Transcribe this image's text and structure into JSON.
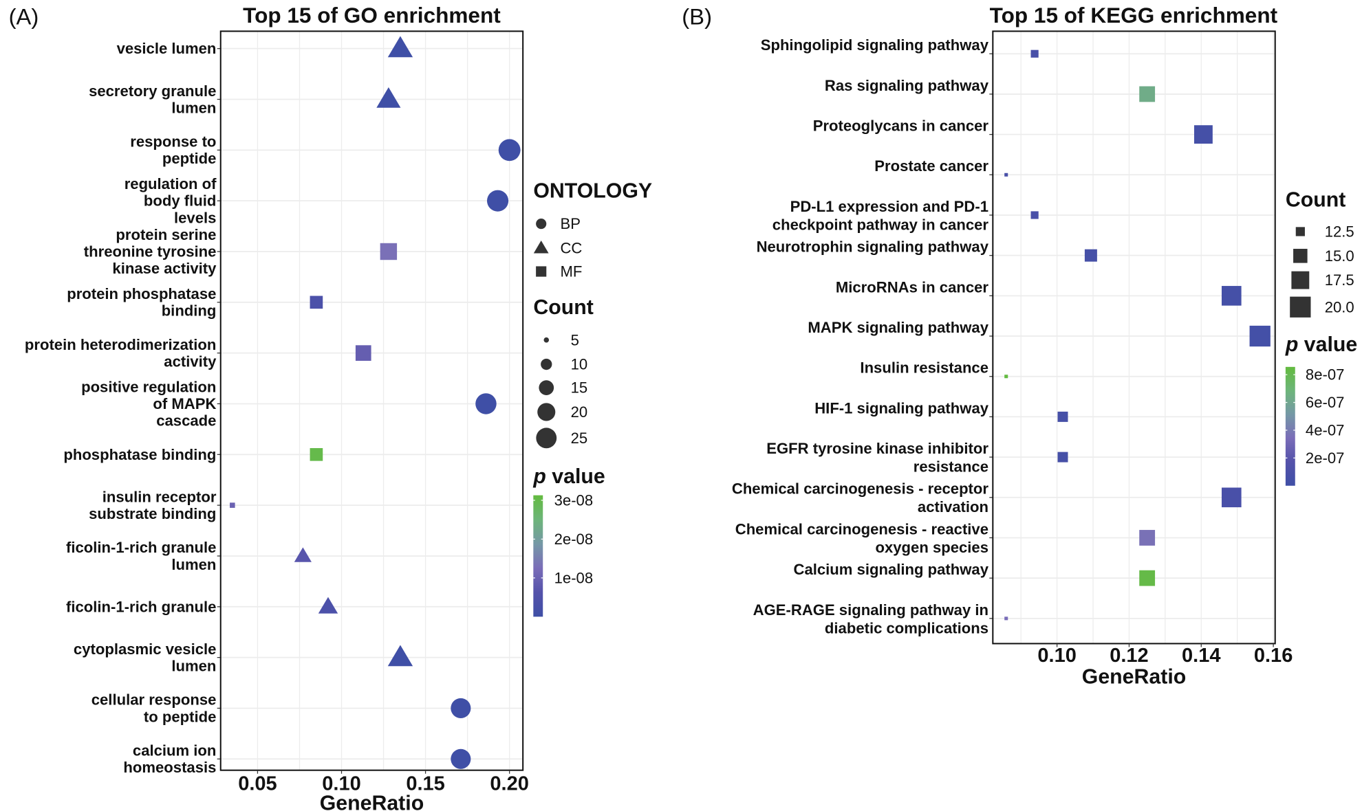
{
  "chart_data": [
    {
      "type": "scatter",
      "panel_label": "(A)",
      "title": "Top 15 of GO enrichment",
      "xlabel": "GeneRatio",
      "xlim": [
        0.028,
        0.208
      ],
      "xticks": [
        0.05,
        0.1,
        0.15,
        0.2
      ],
      "xtick_labels": [
        "0.05",
        "0.10",
        "0.15",
        "0.20"
      ],
      "grid": true,
      "points": [
        {
          "term": "vesicle lumen",
          "gene_ratio": 0.135,
          "count": 19,
          "ontology": "CC",
          "p_value": 1e-10
        },
        {
          "term": "secretory granule\nlumen",
          "gene_ratio": 0.128,
          "count": 18,
          "ontology": "CC",
          "p_value": 1e-10
        },
        {
          "term": "response to\npeptide",
          "gene_ratio": 0.2,
          "count": 28,
          "ontology": "BP",
          "p_value": 1e-10
        },
        {
          "term": "regulation of\nbody fluid\nlevels",
          "gene_ratio": 0.193,
          "count": 27,
          "ontology": "BP",
          "p_value": 1e-10
        },
        {
          "term": "protein serine\nthreonine tyrosine\nkinase activity",
          "gene_ratio": 0.128,
          "count": 18,
          "ontology": "MF",
          "p_value": 1.3e-08
        },
        {
          "term": "protein phosphatase\nbinding",
          "gene_ratio": 0.085,
          "count": 12,
          "ontology": "MF",
          "p_value": 4e-09
        },
        {
          "term": "protein heterodimerization\nactivity",
          "gene_ratio": 0.113,
          "count": 16,
          "ontology": "MF",
          "p_value": 9e-09
        },
        {
          "term": "positive regulation\nof MAPK\ncascade",
          "gene_ratio": 0.186,
          "count": 26,
          "ontology": "BP",
          "p_value": 1e-10
        },
        {
          "term": "phosphatase binding",
          "gene_ratio": 0.085,
          "count": 12,
          "ontology": "MF",
          "p_value": 3e-08
        },
        {
          "term": "insulin receptor\nsubstrate binding",
          "gene_ratio": 0.035,
          "count": 5,
          "ontology": "MF",
          "p_value": 1e-08
        },
        {
          "term": "ficolin-1-rich granule\nlumen",
          "gene_ratio": 0.077,
          "count": 11,
          "ontology": "CC",
          "p_value": 7e-09
        },
        {
          "term": "ficolin-1-rich granule",
          "gene_ratio": 0.092,
          "count": 13,
          "ontology": "CC",
          "p_value": 4e-09
        },
        {
          "term": "cytoplasmic vesicle\nlumen",
          "gene_ratio": 0.135,
          "count": 19,
          "ontology": "CC",
          "p_value": 1e-10
        },
        {
          "term": "cellular response\nto peptide",
          "gene_ratio": 0.171,
          "count": 24,
          "ontology": "BP",
          "p_value": 1e-10
        },
        {
          "term": "calcium ion\nhomeostasis",
          "gene_ratio": 0.171,
          "count": 24,
          "ontology": "BP",
          "p_value": 1e-10
        }
      ],
      "legend_ontology": {
        "title": "ONTOLOGY",
        "items": [
          {
            "label": "BP",
            "shape": "circle"
          },
          {
            "label": "CC",
            "shape": "triangle"
          },
          {
            "label": "MF",
            "shape": "square"
          }
        ]
      },
      "legend_count": {
        "title": "Count",
        "values": [
          5,
          10,
          15,
          20,
          25
        ],
        "labels": [
          "5",
          "10",
          "15",
          "20",
          "25"
        ],
        "shape": "circle"
      },
      "legend_p": {
        "title": "p value",
        "ticks": [
          3e-08,
          2e-08,
          1e-08
        ],
        "tick_labels": [
          "3e-08",
          "2e-08",
          "1e-08"
        ],
        "range": [
          0,
          3.13e-08
        ]
      },
      "legend_placement": "right"
    },
    {
      "type": "scatter",
      "panel_label": "(B)",
      "title": "Top 15 of KEGG enrichment",
      "xlabel": "GeneRatio",
      "xlim": [
        0.0822,
        0.1605
      ],
      "xticks": [
        0.1,
        0.12,
        0.14,
        0.16
      ],
      "xtick_labels": [
        "0.10",
        "0.12",
        "0.14",
        "0.16"
      ],
      "grid": true,
      "points": [
        {
          "term": "Sphingolipid signaling pathway",
          "gene_ratio": 0.0938,
          "count": 12,
          "p_value": 8e-08
        },
        {
          "term": "Ras signaling pathway",
          "gene_ratio": 0.125,
          "count": 16,
          "p_value": 6.3e-07
        },
        {
          "term": "Proteoglycans in cancer",
          "gene_ratio": 0.1406,
          "count": 18,
          "p_value": 5e-08
        },
        {
          "term": "Prostate cancer",
          "gene_ratio": 0.0859,
          "count": 11,
          "p_value": 8e-08
        },
        {
          "term": "PD-L1 expression and PD-1\ncheckpoint pathway in cancer",
          "gene_ratio": 0.0938,
          "count": 12,
          "p_value": 8e-08
        },
        {
          "term": "Neurotrophin signaling pathway",
          "gene_ratio": 0.1094,
          "count": 14,
          "p_value": 6e-08
        },
        {
          "term": "MicroRNAs in cancer",
          "gene_ratio": 0.1484,
          "count": 19,
          "p_value": 5e-08
        },
        {
          "term": "MAPK signaling pathway",
          "gene_ratio": 0.1563,
          "count": 20,
          "p_value": 4e-08
        },
        {
          "term": "Insulin resistance",
          "gene_ratio": 0.0859,
          "count": 11,
          "p_value": 8.5e-07
        },
        {
          "term": "HIF-1 signaling pathway",
          "gene_ratio": 0.1016,
          "count": 13,
          "p_value": 6e-08
        },
        {
          "term": "EGFR tyrosine kinase inhibitor\nresistance",
          "gene_ratio": 0.1016,
          "count": 13,
          "p_value": 6e-08
        },
        {
          "term": "Chemical carcinogenesis - receptor\nactivation",
          "gene_ratio": 0.1484,
          "count": 19,
          "p_value": 8e-08
        },
        {
          "term": "Chemical carcinogenesis - reactive\noxygen species",
          "gene_ratio": 0.125,
          "count": 16,
          "p_value": 3.6e-07
        },
        {
          "term": "Calcium signaling pathway",
          "gene_ratio": 0.125,
          "count": 16,
          "p_value": 8.3e-07
        },
        {
          "term": "AGE-RAGE signaling pathway in\ndiabetic complications",
          "gene_ratio": 0.0859,
          "count": 11,
          "p_value": 3.4e-07
        }
      ],
      "legend_count": {
        "title": "Count",
        "values": [
          12.5,
          15.0,
          17.5,
          20.0
        ],
        "labels": [
          "12.5",
          "15.0",
          "17.5",
          "20.0"
        ],
        "shape": "square"
      },
      "legend_p": {
        "title": "p value",
        "ticks": [
          8e-07,
          6e-07,
          4e-07,
          2e-07
        ],
        "tick_labels": [
          "8e-07",
          "6e-07",
          "4e-07",
          "2e-07"
        ],
        "range": [
          0,
          8.56e-07
        ]
      },
      "legend_placement": "right"
    }
  ],
  "colors": {
    "p_low": "#3f4fa6",
    "p_mid": "#7a6db8",
    "p_high": "#63bb3f",
    "gradient": [
      "#3f4fa6",
      "#5452aa",
      "#7a6db8",
      "#7598a6",
      "#6db57a",
      "#63bb3f"
    ],
    "legend_key": "#333333",
    "panel_border": "#111111",
    "grid": "#ececec"
  }
}
